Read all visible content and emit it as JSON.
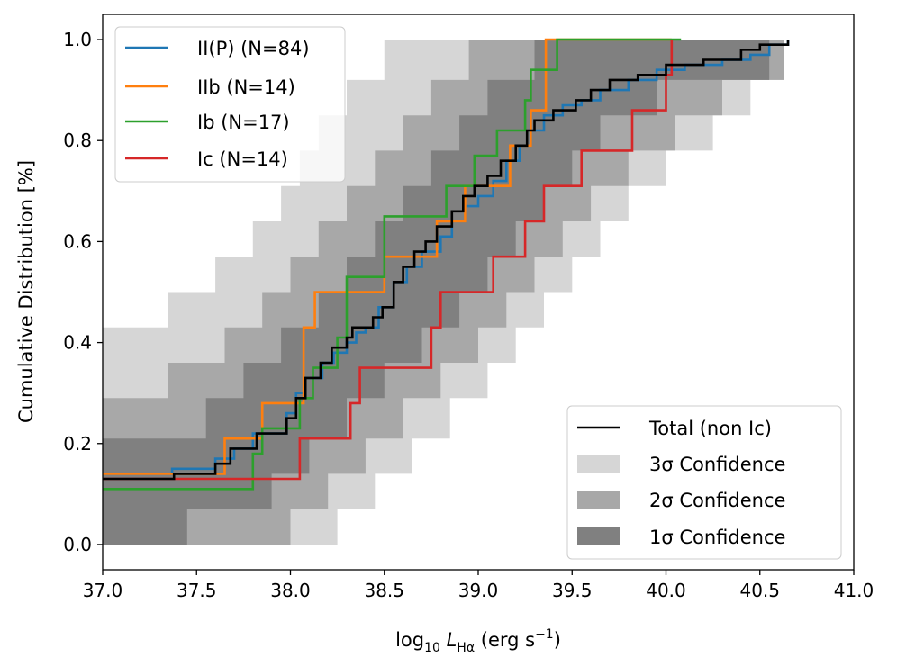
{
  "chart_data": {
    "type": "line",
    "subtype": "step-cdf",
    "xlabel_prefix": "log",
    "xlabel_sub": "10",
    "xlabel_var": "L",
    "xlabel_var_sub": "Hα",
    "xlabel_unit_open": "(erg s",
    "xlabel_unit_sup": "−1",
    "xlabel_unit_close": ")",
    "ylabel": "Cumulative Distribution [%]",
    "xlim": [
      37.0,
      41.0
    ],
    "ylim": [
      -0.05,
      1.05
    ],
    "xticks": [
      "37.0",
      "37.5",
      "38.0",
      "38.5",
      "39.0",
      "39.5",
      "40.0",
      "40.5",
      "41.0"
    ],
    "yticks": [
      "0.0",
      "0.2",
      "0.4",
      "0.6",
      "0.8",
      "1.0"
    ],
    "bands": [
      {
        "name": "3σ Confidence",
        "color": "#d6d6d6",
        "lower": [
          [
            37.0,
            0.0
          ],
          [
            38.25,
            0.0
          ],
          [
            38.25,
            0.07
          ],
          [
            38.45,
            0.07
          ],
          [
            38.45,
            0.14
          ],
          [
            38.65,
            0.14
          ],
          [
            38.65,
            0.21
          ],
          [
            38.85,
            0.21
          ],
          [
            38.85,
            0.29
          ],
          [
            39.05,
            0.29
          ],
          [
            39.05,
            0.36
          ],
          [
            39.2,
            0.36
          ],
          [
            39.2,
            0.43
          ],
          [
            39.35,
            0.43
          ],
          [
            39.35,
            0.5
          ],
          [
            39.5,
            0.5
          ],
          [
            39.5,
            0.57
          ],
          [
            39.65,
            0.57
          ],
          [
            39.65,
            0.64
          ],
          [
            39.8,
            0.64
          ],
          [
            39.8,
            0.71
          ],
          [
            40.0,
            0.71
          ],
          [
            40.0,
            0.78
          ],
          [
            40.25,
            0.78
          ],
          [
            40.25,
            0.85
          ],
          [
            40.45,
            0.85
          ],
          [
            40.45,
            0.92
          ],
          [
            40.63,
            0.92
          ],
          [
            40.63,
            1.0
          ]
        ],
        "upper": [
          [
            37.0,
            0.43
          ],
          [
            37.35,
            0.43
          ],
          [
            37.35,
            0.5
          ],
          [
            37.6,
            0.5
          ],
          [
            37.6,
            0.57
          ],
          [
            37.8,
            0.57
          ],
          [
            37.8,
            0.64
          ],
          [
            37.95,
            0.64
          ],
          [
            37.95,
            0.71
          ],
          [
            38.05,
            0.71
          ],
          [
            38.05,
            0.78
          ],
          [
            38.15,
            0.78
          ],
          [
            38.15,
            0.85
          ],
          [
            38.3,
            0.85
          ],
          [
            38.3,
            0.92
          ],
          [
            38.5,
            0.92
          ],
          [
            38.5,
            1.0
          ],
          [
            40.65,
            1.0
          ]
        ]
      },
      {
        "name": "2σ Confidence",
        "color": "#a8a8a8",
        "lower": [
          [
            37.0,
            0.0
          ],
          [
            38.0,
            0.0
          ],
          [
            38.0,
            0.07
          ],
          [
            38.2,
            0.07
          ],
          [
            38.2,
            0.14
          ],
          [
            38.4,
            0.14
          ],
          [
            38.4,
            0.21
          ],
          [
            38.6,
            0.21
          ],
          [
            38.6,
            0.29
          ],
          [
            38.8,
            0.29
          ],
          [
            38.8,
            0.36
          ],
          [
            39.0,
            0.36
          ],
          [
            39.0,
            0.43
          ],
          [
            39.15,
            0.43
          ],
          [
            39.15,
            0.5
          ],
          [
            39.3,
            0.5
          ],
          [
            39.3,
            0.57
          ],
          [
            39.45,
            0.57
          ],
          [
            39.45,
            0.64
          ],
          [
            39.6,
            0.64
          ],
          [
            39.6,
            0.71
          ],
          [
            39.8,
            0.71
          ],
          [
            39.8,
            0.78
          ],
          [
            40.05,
            0.78
          ],
          [
            40.05,
            0.85
          ],
          [
            40.3,
            0.85
          ],
          [
            40.3,
            0.92
          ],
          [
            40.63,
            0.92
          ],
          [
            40.63,
            1.0
          ]
        ],
        "upper": [
          [
            37.0,
            0.29
          ],
          [
            37.35,
            0.29
          ],
          [
            37.35,
            0.36
          ],
          [
            37.65,
            0.36
          ],
          [
            37.65,
            0.43
          ],
          [
            37.85,
            0.43
          ],
          [
            37.85,
            0.5
          ],
          [
            38.0,
            0.5
          ],
          [
            38.0,
            0.57
          ],
          [
            38.15,
            0.57
          ],
          [
            38.15,
            0.64
          ],
          [
            38.3,
            0.64
          ],
          [
            38.3,
            0.71
          ],
          [
            38.45,
            0.71
          ],
          [
            38.45,
            0.78
          ],
          [
            38.6,
            0.78
          ],
          [
            38.6,
            0.85
          ],
          [
            38.75,
            0.85
          ],
          [
            38.75,
            0.92
          ],
          [
            38.95,
            0.92
          ],
          [
            38.95,
            1.0
          ],
          [
            40.65,
            1.0
          ]
        ]
      },
      {
        "name": "1σ Confidence",
        "color": "#808080",
        "lower": [
          [
            37.0,
            0.0
          ],
          [
            37.45,
            0.0
          ],
          [
            37.45,
            0.07
          ],
          [
            37.9,
            0.07
          ],
          [
            37.9,
            0.14
          ],
          [
            38.1,
            0.14
          ],
          [
            38.1,
            0.21
          ],
          [
            38.3,
            0.21
          ],
          [
            38.3,
            0.29
          ],
          [
            38.5,
            0.29
          ],
          [
            38.5,
            0.36
          ],
          [
            38.7,
            0.36
          ],
          [
            38.7,
            0.43
          ],
          [
            38.9,
            0.43
          ],
          [
            38.9,
            0.5
          ],
          [
            39.05,
            0.5
          ],
          [
            39.05,
            0.57
          ],
          [
            39.2,
            0.57
          ],
          [
            39.2,
            0.64
          ],
          [
            39.35,
            0.64
          ],
          [
            39.35,
            0.71
          ],
          [
            39.5,
            0.71
          ],
          [
            39.5,
            0.78
          ],
          [
            39.65,
            0.78
          ],
          [
            39.65,
            0.85
          ],
          [
            39.95,
            0.85
          ],
          [
            39.95,
            0.92
          ],
          [
            40.55,
            0.92
          ],
          [
            40.55,
            1.0
          ]
        ],
        "upper": [
          [
            37.0,
            0.21
          ],
          [
            37.55,
            0.21
          ],
          [
            37.55,
            0.29
          ],
          [
            37.75,
            0.29
          ],
          [
            37.75,
            0.36
          ],
          [
            37.95,
            0.36
          ],
          [
            37.95,
            0.43
          ],
          [
            38.15,
            0.43
          ],
          [
            38.15,
            0.5
          ],
          [
            38.3,
            0.5
          ],
          [
            38.3,
            0.57
          ],
          [
            38.45,
            0.57
          ],
          [
            38.45,
            0.64
          ],
          [
            38.6,
            0.64
          ],
          [
            38.6,
            0.71
          ],
          [
            38.75,
            0.71
          ],
          [
            38.75,
            0.78
          ],
          [
            38.9,
            0.78
          ],
          [
            38.9,
            0.85
          ],
          [
            39.05,
            0.85
          ],
          [
            39.05,
            0.92
          ],
          [
            39.3,
            0.92
          ],
          [
            39.3,
            1.0
          ],
          [
            40.65,
            1.0
          ]
        ]
      }
    ],
    "series": [
      {
        "name": "Total (non Ic)",
        "color": "#000000",
        "x": [
          37.0,
          37.38,
          37.6,
          37.68,
          37.82,
          37.98,
          38.03,
          38.08,
          38.16,
          38.22,
          38.3,
          38.33,
          38.38,
          38.44,
          38.49,
          38.55,
          38.6,
          38.66,
          38.72,
          38.78,
          38.86,
          38.92,
          38.98,
          39.05,
          39.12,
          39.2,
          39.26,
          39.3,
          39.4,
          39.52,
          39.6,
          39.7,
          39.85,
          40.0,
          40.2,
          40.4,
          40.5,
          40.65
        ],
        "y": [
          0.13,
          0.14,
          0.16,
          0.19,
          0.22,
          0.25,
          0.29,
          0.33,
          0.36,
          0.39,
          0.41,
          0.43,
          0.43,
          0.45,
          0.47,
          0.52,
          0.55,
          0.58,
          0.6,
          0.63,
          0.66,
          0.69,
          0.71,
          0.73,
          0.76,
          0.79,
          0.82,
          0.84,
          0.86,
          0.88,
          0.9,
          0.92,
          0.93,
          0.95,
          0.96,
          0.98,
          0.99,
          1.0
        ]
      },
      {
        "name": "II(P) (N=84)",
        "color": "#1f77b4",
        "x": [
          37.0,
          37.37,
          37.6,
          37.7,
          37.8,
          37.98,
          38.03,
          38.08,
          38.17,
          38.23,
          38.3,
          38.35,
          38.4,
          38.47,
          38.55,
          38.62,
          38.7,
          38.8,
          38.86,
          38.93,
          39.0,
          39.08,
          39.15,
          39.22,
          39.28,
          39.35,
          39.45,
          39.55,
          39.65,
          39.8,
          39.95,
          40.1,
          40.3,
          40.45,
          40.55,
          40.65
        ],
        "y": [
          0.14,
          0.15,
          0.17,
          0.19,
          0.22,
          0.26,
          0.3,
          0.33,
          0.36,
          0.38,
          0.4,
          0.42,
          0.43,
          0.47,
          0.52,
          0.55,
          0.58,
          0.61,
          0.64,
          0.67,
          0.69,
          0.72,
          0.76,
          0.79,
          0.82,
          0.85,
          0.87,
          0.88,
          0.9,
          0.92,
          0.94,
          0.95,
          0.96,
          0.97,
          0.99,
          1.0
        ]
      },
      {
        "name": "IIb (N=14)",
        "color": "#ff7f0e",
        "x": [
          37.0,
          37.65,
          37.85,
          38.07,
          38.13,
          38.5,
          38.78,
          38.93,
          39.02,
          39.17,
          39.28,
          39.36,
          40.03
        ],
        "y": [
          0.14,
          0.21,
          0.28,
          0.43,
          0.5,
          0.57,
          0.64,
          0.71,
          0.71,
          0.79,
          0.86,
          1.0,
          1.0
        ],
        "x_steps": true
      },
      {
        "name": "Ib (N=17)",
        "color": "#2ca02c",
        "x": [
          37.0,
          37.8,
          37.85,
          38.05,
          38.12,
          38.25,
          38.3,
          38.5,
          38.83,
          38.98,
          39.1,
          39.25,
          39.28,
          39.35,
          39.42,
          39.47,
          40.08
        ],
        "y": [
          0.11,
          0.18,
          0.23,
          0.29,
          0.35,
          0.41,
          0.53,
          0.65,
          0.71,
          0.77,
          0.82,
          0.88,
          0.94,
          0.94,
          1.0,
          1.0,
          1.0
        ]
      },
      {
        "name": "Ic (N=14)",
        "color": "#d62728",
        "x": [
          37.0,
          38.05,
          38.32,
          38.37,
          38.75,
          38.8,
          39.08,
          39.25,
          39.35,
          39.55,
          39.7,
          39.82,
          40.0,
          40.03
        ],
        "y": [
          0.13,
          0.21,
          0.28,
          0.35,
          0.43,
          0.5,
          0.57,
          0.64,
          0.71,
          0.78,
          0.78,
          0.86,
          0.93,
          1.0
        ]
      }
    ],
    "legends": [
      {
        "placement": "top-left",
        "entries": [
          "II(P) (N=84)",
          "IIb (N=14)",
          "Ib (N=17)",
          "Ic (N=14)"
        ]
      },
      {
        "placement": "bottom-right",
        "entries": [
          "Total (non Ic)",
          "3σ Confidence",
          "2σ Confidence",
          "1σ Confidence"
        ]
      }
    ]
  }
}
